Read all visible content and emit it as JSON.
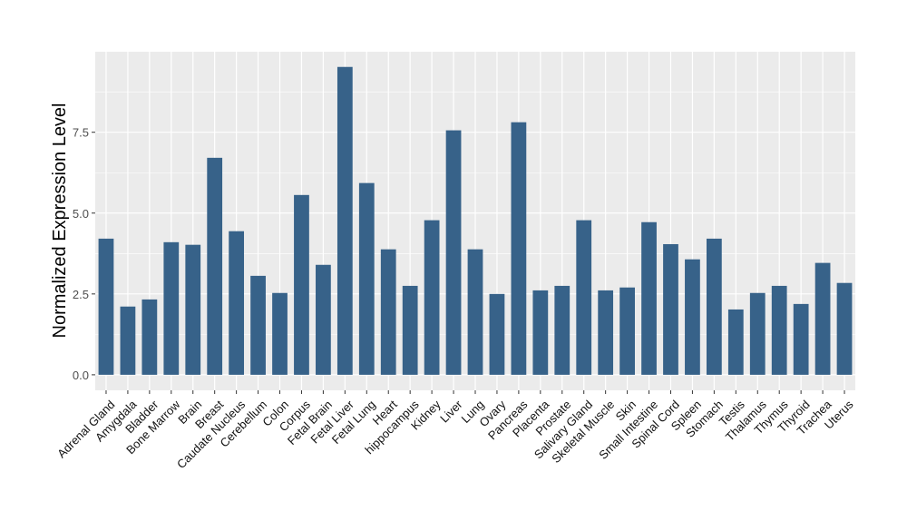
{
  "chart_data": {
    "type": "bar",
    "title": "",
    "xlabel": "",
    "ylabel": "Normalized Expression Level",
    "ylim": [
      -0.48,
      9.99
    ],
    "yticks": [
      0.0,
      2.5,
      5.0,
      7.5
    ],
    "ytick_labels": [
      "0.0",
      "2.5",
      "5.0",
      "7.5"
    ],
    "grid": true,
    "bar_color": "#376289",
    "panel_color": "#EBEBEB",
    "categories": [
      "Adrenal Gland",
      "Amygdala",
      "Bladder",
      "Bone Marrow",
      "Brain",
      "Breast",
      "Caudate Nucleus",
      "Cerebellum",
      "Colon",
      "Corpus",
      "Fetal Brain",
      "Fetal Liver",
      "Fetal Lung",
      "Heart",
      "hippocampus",
      "Kidney",
      "Liver",
      "Lung",
      "Ovary",
      "Pancreas",
      "Placenta",
      "Prostate",
      "Salivary Gland",
      "Skeletal Muscle",
      "Skin",
      "Small Intestine",
      "Spinal Cord",
      "Spleen",
      "Stomach",
      "Testis",
      "Thalamus",
      "Thymus",
      "Thyroid",
      "Trachea",
      "Uterus"
    ],
    "values": [
      4.21,
      2.11,
      2.33,
      4.1,
      4.02,
      6.71,
      4.44,
      3.06,
      2.53,
      5.56,
      3.4,
      9.52,
      5.93,
      3.88,
      2.75,
      4.78,
      7.56,
      3.88,
      2.5,
      7.81,
      2.61,
      2.75,
      4.78,
      2.61,
      2.7,
      4.72,
      4.04,
      3.57,
      4.21,
      2.02,
      2.53,
      2.75,
      2.19,
      3.46,
      2.84
    ]
  }
}
